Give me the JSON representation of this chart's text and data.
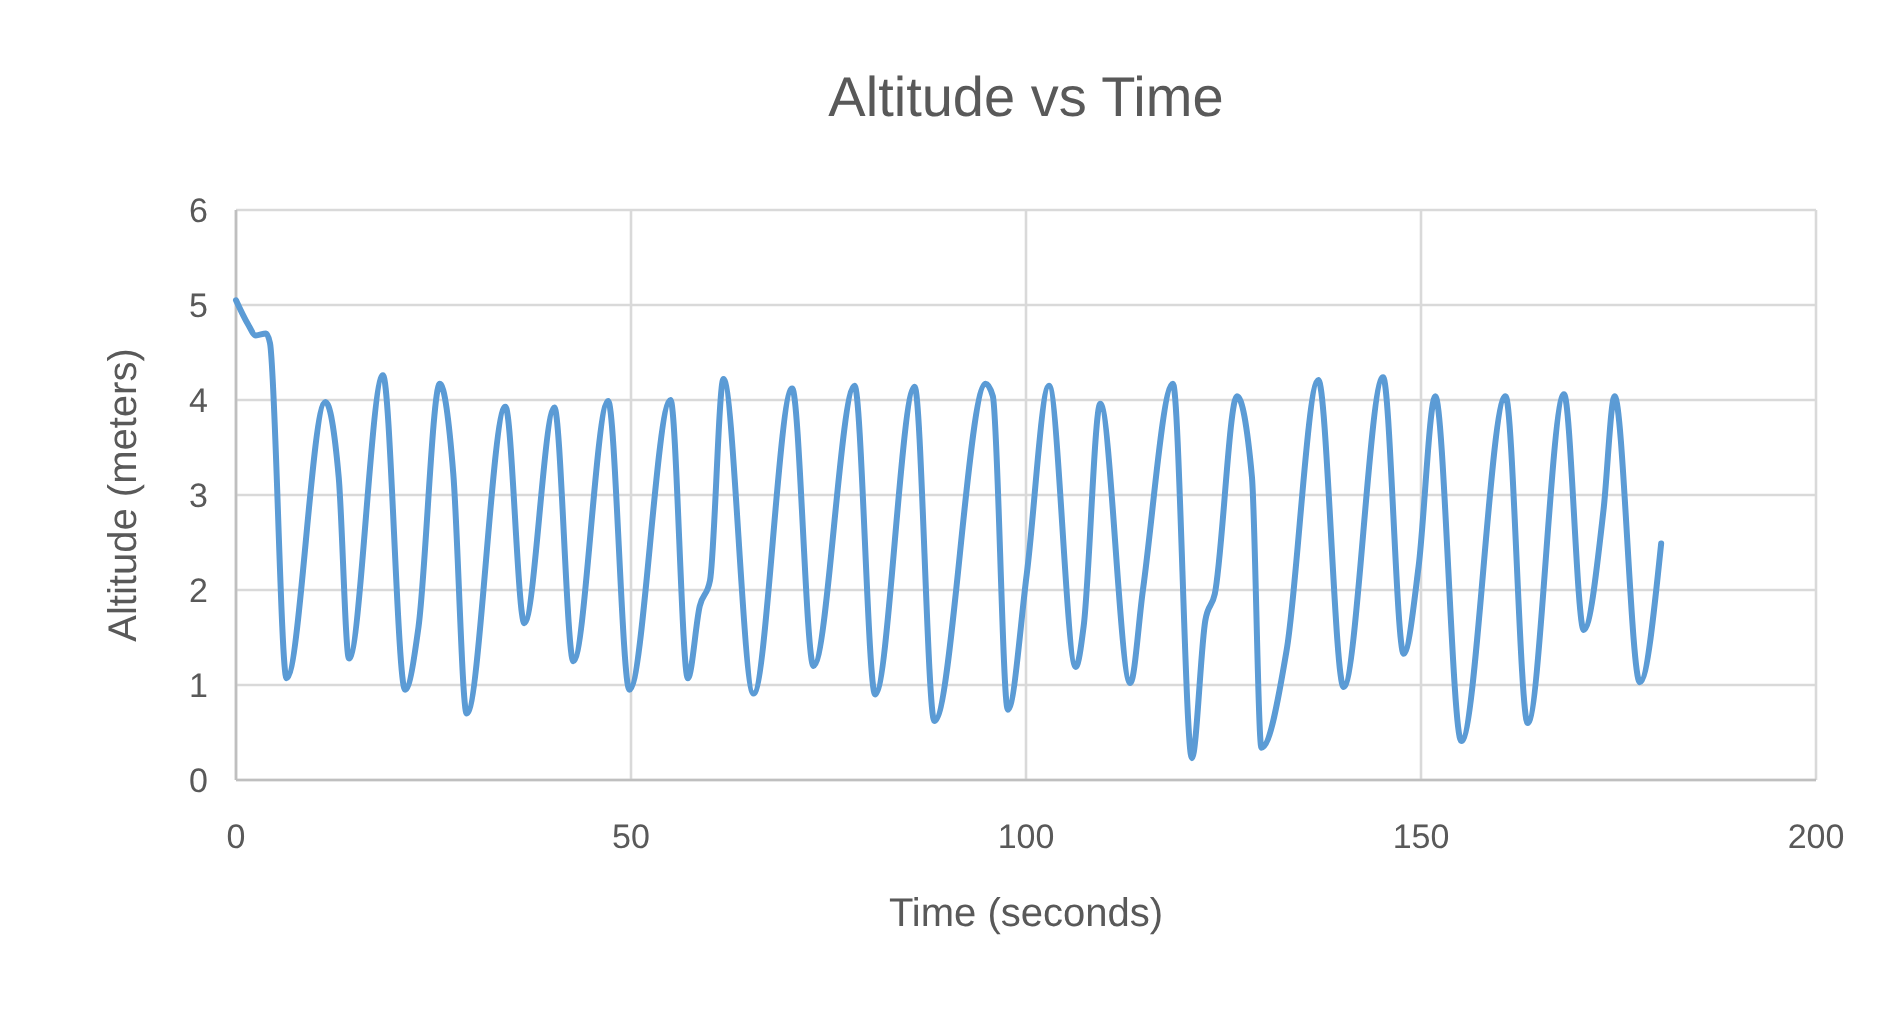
{
  "chart_data": {
    "type": "line",
    "title": "Altitude vs Time",
    "xlabel": "Time (seconds)",
    "ylabel": "Altitude (meters)",
    "x": [
      0,
      1.5,
      2.5,
      3.8,
      4.3,
      6.4,
      11.3,
      13,
      14.3,
      18.6,
      21.4,
      23.1,
      25.8,
      27.5,
      29.2,
      34.1,
      36.5,
      40.3,
      42.7,
      47.1,
      49.8,
      55,
      57.2,
      58.7,
      60,
      61.7,
      65.5,
      70.4,
      73.1,
      78.3,
      80.9,
      85.9,
      88.4,
      94.9,
      95.8,
      97.7,
      100.1,
      102.9,
      106.3,
      107.3,
      109.4,
      113.2,
      114.8,
      118.6,
      121,
      122.7,
      123.9,
      126.7,
      128.6,
      129.8,
      133,
      137,
      140.2,
      145.2,
      147.8,
      149.7,
      151.8,
      155.1,
      160.7,
      163.5,
      168.1,
      170.6,
      173.1,
      174.5,
      177.7,
      180.4
    ],
    "series": [
      {
        "color": "#5b9bd5",
        "values": [
          5.05,
          4.8,
          4.68,
          4.7,
          4.6,
          1.07,
          3.98,
          3.19,
          1.28,
          4.26,
          0.95,
          1.61,
          4.17,
          3.23,
          0.7,
          3.93,
          1.65,
          3.92,
          1.25,
          3.99,
          0.95,
          4.0,
          1.07,
          1.83,
          2.1,
          4.22,
          0.91,
          4.12,
          1.2,
          4.15,
          0.9,
          4.14,
          0.62,
          4.17,
          4.04,
          0.74,
          2.17,
          4.15,
          1.19,
          1.62,
          3.96,
          1.02,
          2.0,
          4.17,
          0.23,
          1.68,
          1.96,
          4.04,
          3.19,
          0.34,
          1.37,
          4.21,
          0.98,
          4.24,
          1.33,
          2.25,
          4.04,
          0.41,
          4.04,
          0.6,
          4.06,
          1.58,
          2.84,
          4.04,
          1.03,
          2.49
        ]
      }
    ],
    "xlim": [
      0,
      200
    ],
    "xticks": [
      0,
      50,
      100,
      150,
      200
    ],
    "ylim": [
      0,
      6
    ],
    "yticks": [
      0,
      1,
      2,
      3,
      4,
      5,
      6
    ],
    "grid": true,
    "marker": "none",
    "line_style": "solid"
  }
}
